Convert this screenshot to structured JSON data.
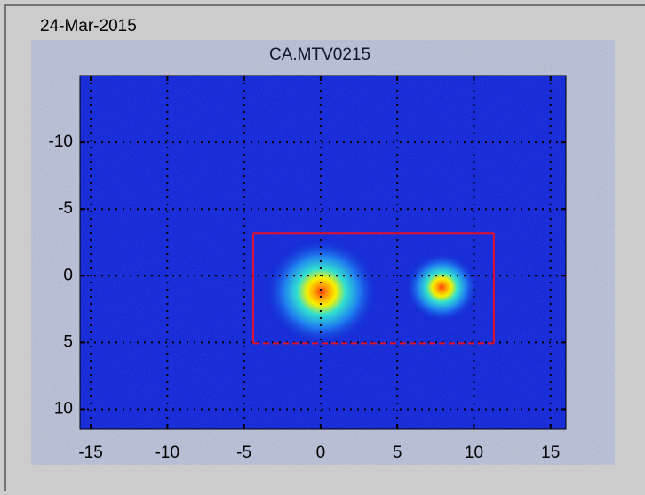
{
  "chart_data": {
    "type": "image",
    "date": "24-Mar-2015",
    "title": "CA.MTV0215",
    "xlim": [
      -15.7,
      16
    ],
    "xticks": [
      -15,
      -10,
      -5,
      0,
      5,
      10,
      15
    ],
    "ylim": [
      -15,
      11.5
    ],
    "yticks": [
      -10,
      -5,
      0,
      5,
      10
    ],
    "y_reversed": true,
    "grid": true,
    "background_color": "#0c1ed0",
    "spots": {
      "x": [
        0.05,
        7.9
      ],
      "y": [
        1.2,
        0.87
      ]
    },
    "roi": {
      "x": [
        -4.4,
        11.3
      ],
      "y": [
        -3.2,
        5.07
      ],
      "color": "#e0102a"
    }
  }
}
